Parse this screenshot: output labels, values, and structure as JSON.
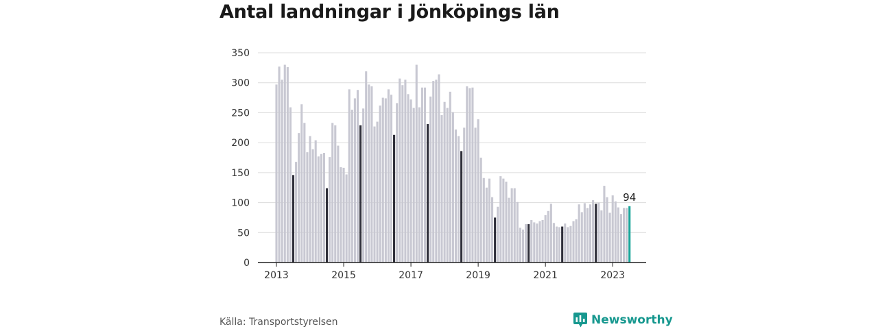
{
  "chart_data": {
    "type": "bar",
    "title": "Antal landningar i Jönköpings län",
    "xlabel": "",
    "ylabel": "",
    "ylim": [
      0,
      350
    ],
    "y_ticks": [
      0,
      50,
      100,
      150,
      200,
      250,
      300,
      350
    ],
    "x_ticks": [
      {
        "label": "2013",
        "month_index": 0
      },
      {
        "label": "2015",
        "month_index": 24
      },
      {
        "label": "2017",
        "month_index": 48
      },
      {
        "label": "2019",
        "month_index": 72
      },
      {
        "label": "2021",
        "month_index": 96
      },
      {
        "label": "2023",
        "month_index": 120
      }
    ],
    "start": "2013-01",
    "frequency": "monthly",
    "grid": true,
    "colors": {
      "regular": "#c8c8d2",
      "july": "#2f2f3a",
      "latest": "#1aa59a"
    },
    "values": [
      297,
      327,
      305,
      330,
      326,
      259,
      146,
      168,
      216,
      264,
      233,
      184,
      211,
      189,
      204,
      177,
      181,
      183,
      124,
      176,
      233,
      229,
      195,
      159,
      158,
      147,
      289,
      255,
      274,
      288,
      229,
      257,
      319,
      297,
      294,
      227,
      235,
      262,
      275,
      274,
      289,
      280,
      213,
      266,
      307,
      296,
      305,
      281,
      272,
      258,
      330,
      259,
      292,
      292,
      231,
      277,
      303,
      305,
      314,
      246,
      268,
      258,
      285,
      251,
      222,
      211,
      186,
      225,
      294,
      291,
      292,
      225,
      239,
      175,
      141,
      125,
      140,
      109,
      75,
      93,
      144,
      140,
      135,
      108,
      124,
      124,
      101,
      58,
      55,
      64,
      64,
      71,
      67,
      65,
      69,
      71,
      79,
      86,
      98,
      66,
      60,
      59,
      60,
      65,
      59,
      61,
      69,
      72,
      97,
      84,
      99,
      91,
      97,
      104,
      98,
      100,
      87,
      128,
      109,
      83,
      112,
      102,
      92,
      81,
      91,
      91,
      94
    ],
    "highlighted_month": 7,
    "latest_label": "94"
  },
  "source": "Källa: Transportstyrelsen",
  "brand": {
    "name": "Newsworthy",
    "icon": "bar-chart-speech-icon",
    "color": "#17988f"
  }
}
